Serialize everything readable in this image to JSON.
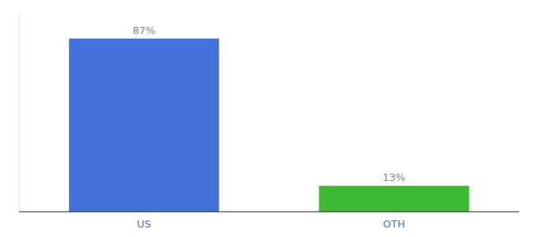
{
  "chart_data": {
    "type": "bar",
    "categories": [
      "US",
      "OTH"
    ],
    "values": [
      87,
      13
    ],
    "value_labels": [
      "87%",
      "13%"
    ],
    "colors": [
      "#4472db",
      "#3dba35"
    ],
    "ylim": [
      0,
      100
    ],
    "data_labels": true,
    "tick_labels": "x"
  }
}
